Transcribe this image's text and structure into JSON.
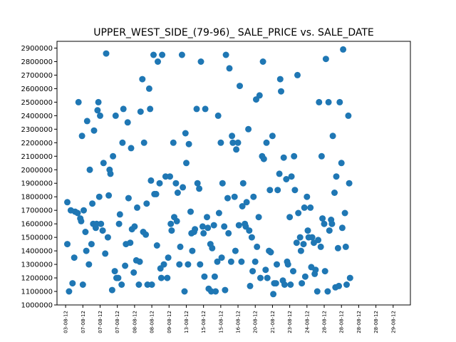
{
  "chart_data": {
    "type": "scatter",
    "title": "UPPER_WEST_SIDE_(79-96)_ SALE_PRICE vs. SALE_DATE",
    "xlabel": "",
    "ylabel": "",
    "x_tick_labels": [
      "03-08-12",
      "07-08-12",
      "07-08-12",
      "07-08-12",
      "08-08-12",
      "08-08-12",
      "09-08-12",
      "13-08-12",
      "15-08-12",
      "15-08-12",
      "16-08-12",
      "20-08-12",
      "21-08-12",
      "23-08-12",
      "24-08-12",
      "28-08-12",
      "28-08-12",
      "28-08-12",
      "28-08-12",
      "29-08-12"
    ],
    "y_ticks": [
      1000000,
      1100000,
      1200000,
      1300000,
      1400000,
      1500000,
      1600000,
      1700000,
      1800000,
      1900000,
      2000000,
      2100000,
      2200000,
      2300000,
      2400000,
      2500000,
      2600000,
      2700000,
      2800000,
      2900000
    ],
    "xlim": [
      -0.5,
      20.0
    ],
    "ylim": [
      1000000,
      2950000
    ],
    "grid": false,
    "marker_color": "#1f77b4",
    "points": [
      [
        0.1,
        1760000
      ],
      [
        0.1,
        1450000
      ],
      [
        0.2,
        1100000
      ],
      [
        0.3,
        1700000
      ],
      [
        0.4,
        1160000
      ],
      [
        0.5,
        1350000
      ],
      [
        0.55,
        1690000
      ],
      [
        0.7,
        1680000
      ],
      [
        0.75,
        2500000
      ],
      [
        0.85,
        1640000
      ],
      [
        0.9,
        1620000
      ],
      [
        0.95,
        2250000
      ],
      [
        1.0,
        1150000
      ],
      [
        1.05,
        1700000
      ],
      [
        1.15,
        1540000
      ],
      [
        1.2,
        1400000
      ],
      [
        1.25,
        2360000
      ],
      [
        1.35,
        1300000
      ],
      [
        1.4,
        2000000
      ],
      [
        1.5,
        1450000
      ],
      [
        1.55,
        1750000
      ],
      [
        1.6,
        1600000
      ],
      [
        1.65,
        2290000
      ],
      [
        1.75,
        1570000
      ],
      [
        1.8,
        1600000
      ],
      [
        1.85,
        2440000
      ],
      [
        1.9,
        2500000
      ],
      [
        1.95,
        1800000
      ],
      [
        2.0,
        2400000
      ],
      [
        2.05,
        1600000
      ],
      [
        2.15,
        1550000
      ],
      [
        2.2,
        2050000
      ],
      [
        2.3,
        1380000
      ],
      [
        2.35,
        2860000
      ],
      [
        2.45,
        1500000
      ],
      [
        2.5,
        1810000
      ],
      [
        2.55,
        2000000
      ],
      [
        2.6,
        1970000
      ],
      [
        2.7,
        1110000
      ],
      [
        2.75,
        2100000
      ],
      [
        2.85,
        1250000
      ],
      [
        2.9,
        2400000
      ],
      [
        2.95,
        1200000
      ],
      [
        3.05,
        1200000
      ],
      [
        3.1,
        1600000
      ],
      [
        3.15,
        1670000
      ],
      [
        3.25,
        1150000
      ],
      [
        3.3,
        2200000
      ],
      [
        3.35,
        2450000
      ],
      [
        3.45,
        1290000
      ],
      [
        3.5,
        1450000
      ],
      [
        3.6,
        2350000
      ],
      [
        3.65,
        1790000
      ],
      [
        3.75,
        1460000
      ],
      [
        3.8,
        2160000
      ],
      [
        3.85,
        1560000
      ],
      [
        3.95,
        1240000
      ],
      [
        4.0,
        1580000
      ],
      [
        4.1,
        1330000
      ],
      [
        4.15,
        1720000
      ],
      [
        4.25,
        1150000
      ],
      [
        4.3,
        1320000
      ],
      [
        4.35,
        2430000
      ],
      [
        4.45,
        2670000
      ],
      [
        4.5,
        1540000
      ],
      [
        4.55,
        2200000
      ],
      [
        4.65,
        1520000
      ],
      [
        4.7,
        1750000
      ],
      [
        4.75,
        1150000
      ],
      [
        4.85,
        2600000
      ],
      [
        4.9,
        2450000
      ],
      [
        4.95,
        1920000
      ],
      [
        5.0,
        1150000
      ],
      [
        5.1,
        2850000
      ],
      [
        5.15,
        1820000
      ],
      [
        5.25,
        1820000
      ],
      [
        5.3,
        1440000
      ],
      [
        5.35,
        2800000
      ],
      [
        5.45,
        1900000
      ],
      [
        5.5,
        1270000
      ],
      [
        5.55,
        1200000
      ],
      [
        5.6,
        2850000
      ],
      [
        5.7,
        1300000
      ],
      [
        5.8,
        1950000
      ],
      [
        5.9,
        1200000
      ],
      [
        5.95,
        1350000
      ],
      [
        6.05,
        1950000
      ],
      [
        6.1,
        1600000
      ],
      [
        6.15,
        1550000
      ],
      [
        6.25,
        2200000
      ],
      [
        6.3,
        1650000
      ],
      [
        6.4,
        1900000
      ],
      [
        6.45,
        1620000
      ],
      [
        6.5,
        1830000
      ],
      [
        6.6,
        1300000
      ],
      [
        6.65,
        1430000
      ],
      [
        6.75,
        2850000
      ],
      [
        6.8,
        1870000
      ],
      [
        6.9,
        1100000
      ],
      [
        6.95,
        2270000
      ],
      [
        7.0,
        2050000
      ],
      [
        7.1,
        1300000
      ],
      [
        7.15,
        2190000
      ],
      [
        7.25,
        1690000
      ],
      [
        7.3,
        1530000
      ],
      [
        7.35,
        1400000
      ],
      [
        7.45,
        1540000
      ],
      [
        7.5,
        1560000
      ],
      [
        7.6,
        2450000
      ],
      [
        7.65,
        1900000
      ],
      [
        7.75,
        1860000
      ],
      [
        7.8,
        1300000
      ],
      [
        7.85,
        2800000
      ],
      [
        7.95,
        1580000
      ],
      [
        8.0,
        1530000
      ],
      [
        8.05,
        1210000
      ],
      [
        8.1,
        2450000
      ],
      [
        8.2,
        1650000
      ],
      [
        8.25,
        1570000
      ],
      [
        8.3,
        1120000
      ],
      [
        8.4,
        1450000
      ],
      [
        8.45,
        1100000
      ],
      [
        8.5,
        1420000
      ],
      [
        8.6,
        1590000
      ],
      [
        8.65,
        1210000
      ],
      [
        8.7,
        1100000
      ],
      [
        8.8,
        1320000
      ],
      [
        8.85,
        2400000
      ],
      [
        8.9,
        1680000
      ],
      [
        9.0,
        2200000
      ],
      [
        9.05,
        1350000
      ],
      [
        9.1,
        1900000
      ],
      [
        9.2,
        1580000
      ],
      [
        9.25,
        1110000
      ],
      [
        9.3,
        2850000
      ],
      [
        9.4,
        1790000
      ],
      [
        9.45,
        1530000
      ],
      [
        9.5,
        2750000
      ],
      [
        9.6,
        1320000
      ],
      [
        9.65,
        2250000
      ],
      [
        9.7,
        2200000
      ],
      [
        9.8,
        1800000
      ],
      [
        9.85,
        1400000
      ],
      [
        9.9,
        2150000
      ],
      [
        10.0,
        2200000
      ],
      [
        10.05,
        1590000
      ],
      [
        10.1,
        2620000
      ],
      [
        10.2,
        1320000
      ],
      [
        10.25,
        1730000
      ],
      [
        10.3,
        1900000
      ],
      [
        10.4,
        1600000
      ],
      [
        10.45,
        1580000
      ],
      [
        10.5,
        1760000
      ],
      [
        10.6,
        2300000
      ],
      [
        10.65,
        1550000
      ],
      [
        10.7,
        1140000
      ],
      [
        10.8,
        1500000
      ],
      [
        10.85,
        1250000
      ],
      [
        10.9,
        1800000
      ],
      [
        11.0,
        1320000
      ],
      [
        11.05,
        2520000
      ],
      [
        11.1,
        1430000
      ],
      [
        11.2,
        1650000
      ],
      [
        11.25,
        2550000
      ],
      [
        11.3,
        1200000
      ],
      [
        11.4,
        2100000
      ],
      [
        11.45,
        2800000
      ],
      [
        11.5,
        2080000
      ],
      [
        11.6,
        1260000
      ],
      [
        11.65,
        2200000
      ],
      [
        11.7,
        1200000
      ],
      [
        11.8,
        1400000
      ],
      [
        11.85,
        1850000
      ],
      [
        11.9,
        1390000
      ],
      [
        12.0,
        2250000
      ],
      [
        12.05,
        1080000
      ],
      [
        12.1,
        1160000
      ],
      [
        12.2,
        1160000
      ],
      [
        12.25,
        1300000
      ],
      [
        12.3,
        1850000
      ],
      [
        12.4,
        1970000
      ],
      [
        12.45,
        2670000
      ],
      [
        12.5,
        2580000
      ],
      [
        12.6,
        1180000
      ],
      [
        12.65,
        2090000
      ],
      [
        12.7,
        1150000
      ],
      [
        12.8,
        1930000
      ],
      [
        12.85,
        1320000
      ],
      [
        12.9,
        1300000
      ],
      [
        13.0,
        1650000
      ],
      [
        13.05,
        1150000
      ],
      [
        13.1,
        1950000
      ],
      [
        13.2,
        1250000
      ],
      [
        13.25,
        2100000
      ],
      [
        13.3,
        1850000
      ],
      [
        13.4,
        1460000
      ],
      [
        13.45,
        2700000
      ],
      [
        13.5,
        1680000
      ],
      [
        13.6,
        1500000
      ],
      [
        13.65,
        1400000
      ],
      [
        13.7,
        1160000
      ],
      [
        13.8,
        1450000
      ],
      [
        13.85,
        1720000
      ],
      [
        13.9,
        1210000
      ],
      [
        14.0,
        1800000
      ],
      [
        14.05,
        1550000
      ],
      [
        14.1,
        1500000
      ],
      [
        14.2,
        1720000
      ],
      [
        14.25,
        1280000
      ],
      [
        14.3,
        1500000
      ],
      [
        14.4,
        1460000
      ],
      [
        14.45,
        1230000
      ],
      [
        14.5,
        1260000
      ],
      [
        14.6,
        1100000
      ],
      [
        14.65,
        1480000
      ],
      [
        14.7,
        2500000
      ],
      [
        14.8,
        1430000
      ],
      [
        14.85,
        2100000
      ],
      [
        14.9,
        1640000
      ],
      [
        15.0,
        1600000
      ],
      [
        15.05,
        1250000
      ],
      [
        15.1,
        2820000
      ],
      [
        15.2,
        1100000
      ],
      [
        15.25,
        2500000
      ],
      [
        15.3,
        1550000
      ],
      [
        15.4,
        1630000
      ],
      [
        15.45,
        1600000
      ],
      [
        15.5,
        2250000
      ],
      [
        15.6,
        1830000
      ],
      [
        15.65,
        1130000
      ],
      [
        15.7,
        1950000
      ],
      [
        15.8,
        1420000
      ],
      [
        15.85,
        1140000
      ],
      [
        15.9,
        2500000
      ],
      [
        16.0,
        2050000
      ],
      [
        16.05,
        1570000
      ],
      [
        16.1,
        2890000
      ],
      [
        16.2,
        1680000
      ],
      [
        16.25,
        1430000
      ],
      [
        16.3,
        1150000
      ],
      [
        16.4,
        2400000
      ],
      [
        16.45,
        1900000
      ],
      [
        16.5,
        1200000
      ]
    ]
  }
}
